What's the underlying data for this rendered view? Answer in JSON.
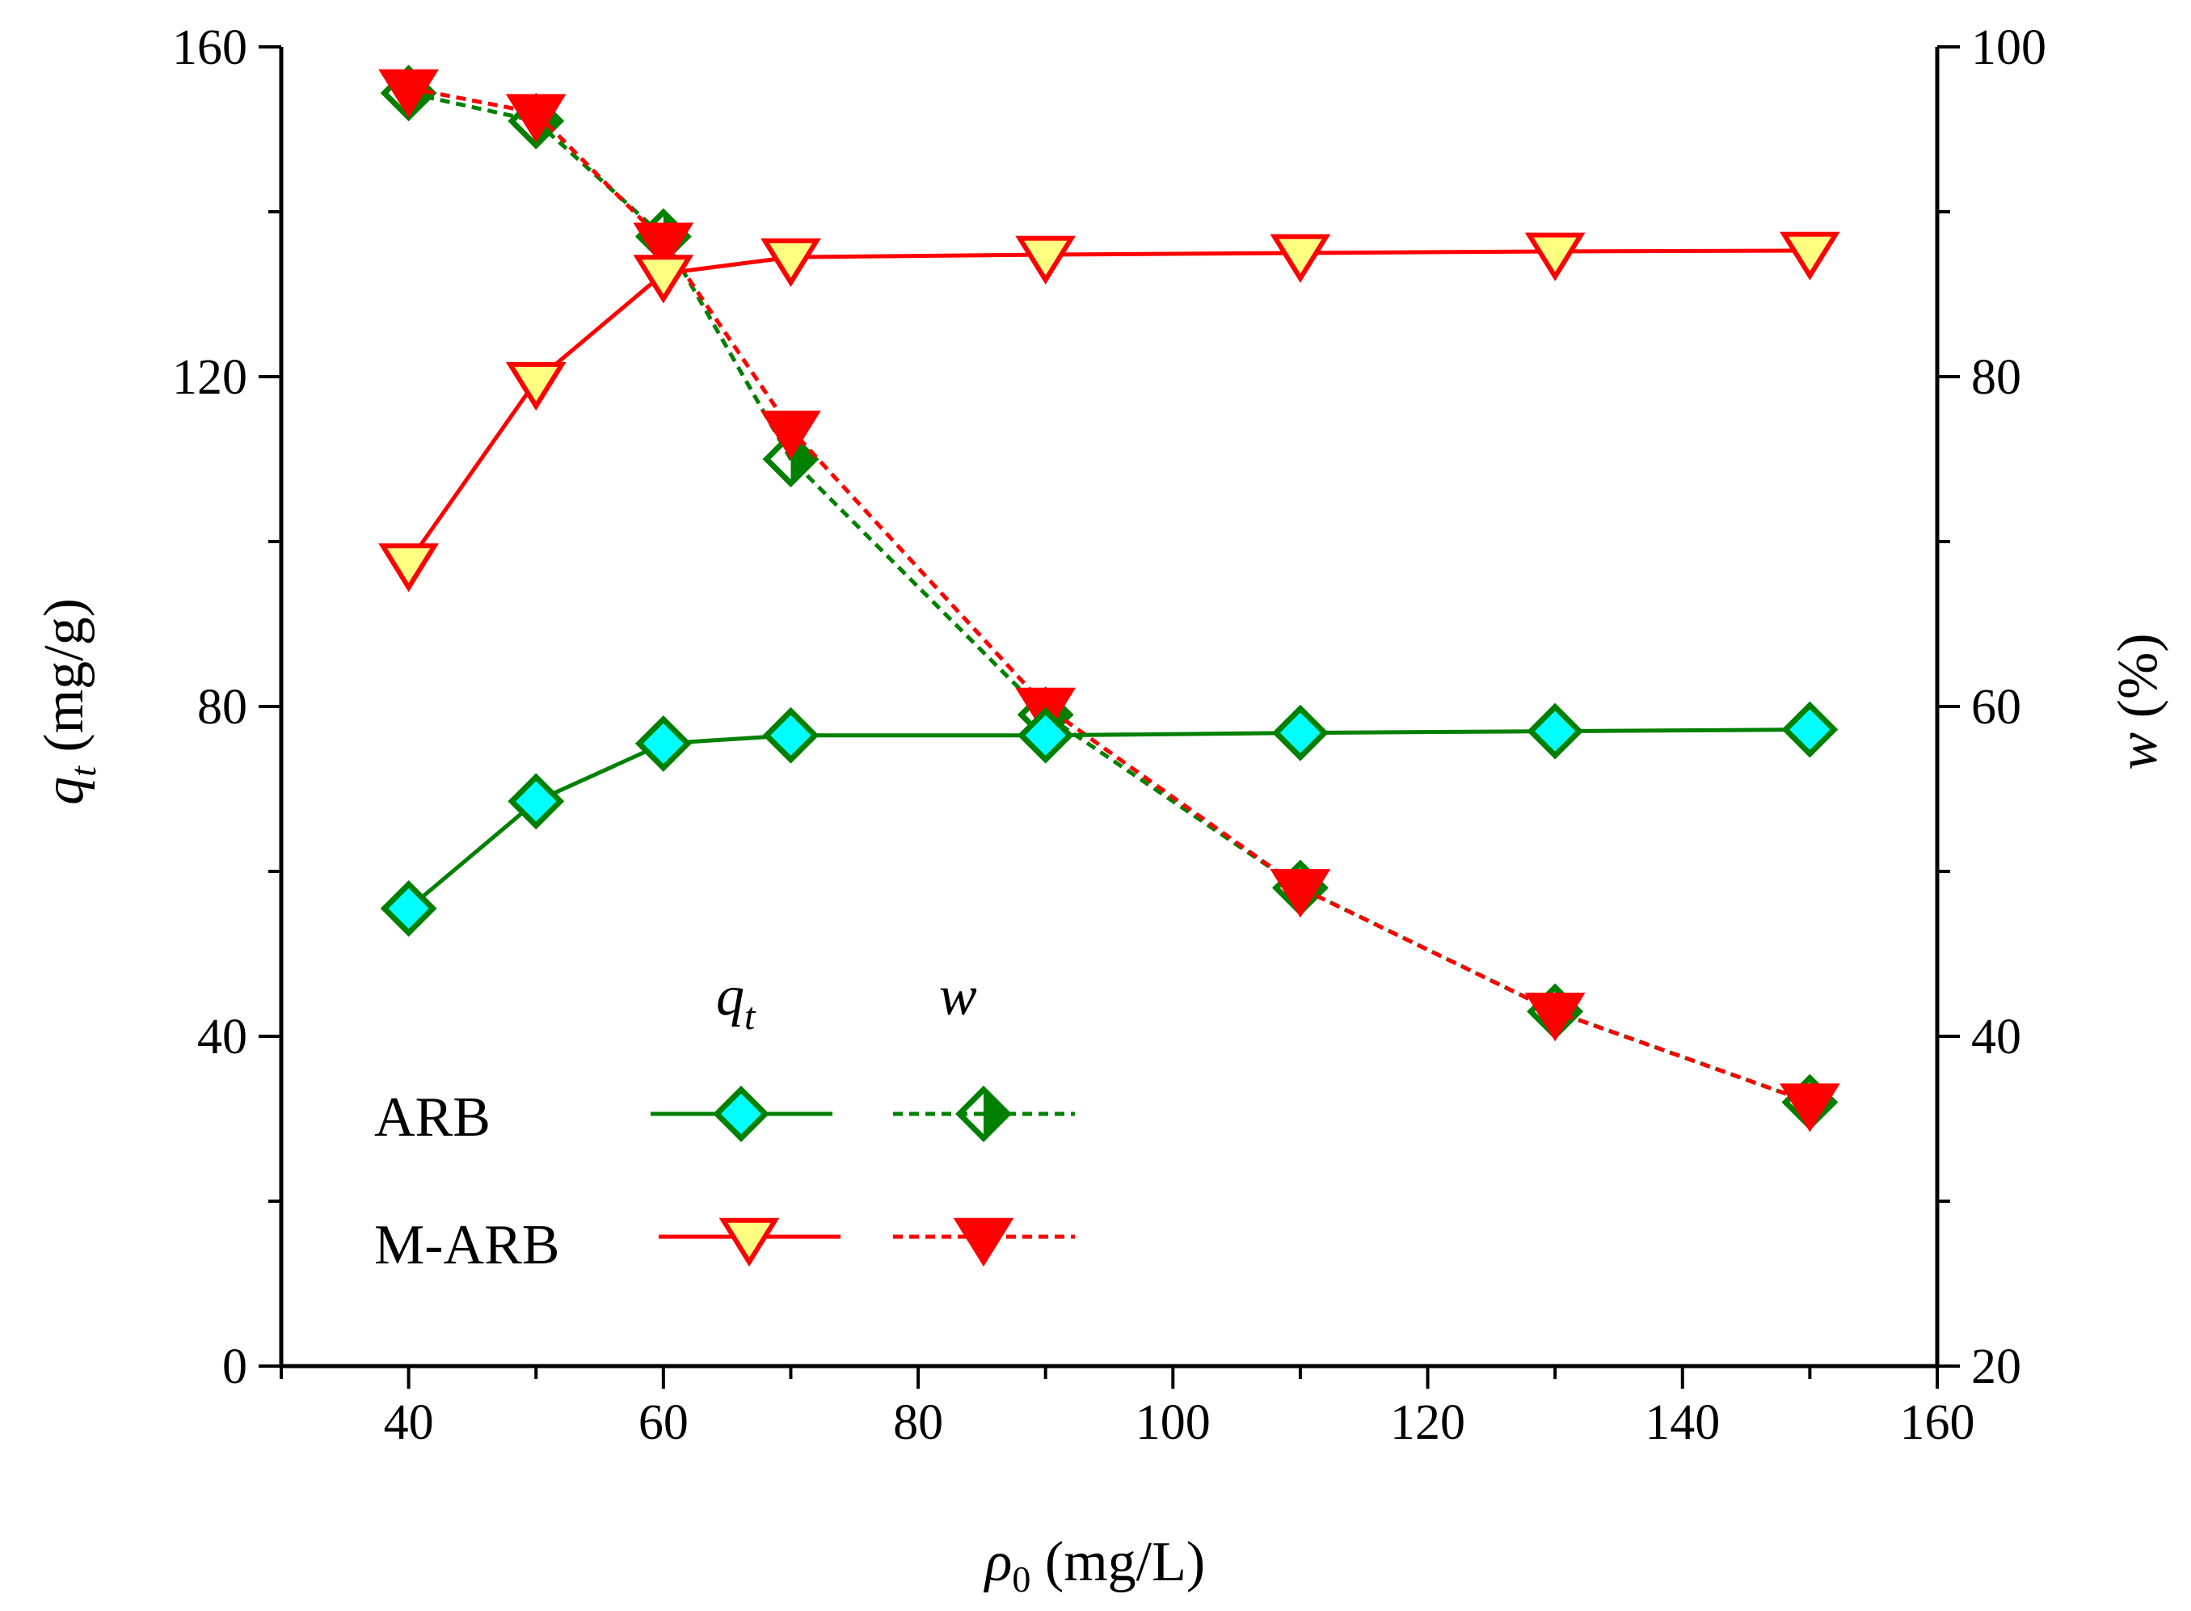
{
  "chart_data": {
    "type": "line",
    "x": [
      40,
      50,
      60,
      70,
      90,
      110,
      130,
      150
    ],
    "xlim": [
      30,
      160
    ],
    "xticks": [
      "40",
      "60",
      "80",
      "100",
      "120",
      "140",
      "160"
    ],
    "ylim_left": [
      0,
      160
    ],
    "yticks_left": [
      "0",
      "40",
      "80",
      "120",
      "160"
    ],
    "ylim_right": [
      20,
      100
    ],
    "yticks_right": [
      "20",
      "40",
      "60",
      "80",
      "100"
    ],
    "xlabel": {
      "symbol": "ρ",
      "sub": "0",
      "unit": " (mg/L)"
    },
    "ylabel_left": {
      "symbol": "q",
      "sub": "t",
      "unit": " (mg/g)"
    },
    "ylabel_right": {
      "symbol": "w",
      "unit": " (%)"
    },
    "legend": {
      "col_qt": {
        "symbol": "q",
        "sub": "t"
      },
      "col_w": "w",
      "rows": [
        "ARB",
        "M-ARB"
      ]
    },
    "series": [
      {
        "name": "ARB q_t",
        "axis": "left",
        "style": "solid",
        "marker": "diamond",
        "color": "#008000",
        "fill": "#00FFFF",
        "values": [
          55.5,
          68.5,
          75.5,
          76.5,
          76.5,
          76.8,
          77.0,
          77.2
        ]
      },
      {
        "name": "ARB w",
        "axis": "right",
        "style": "dashed",
        "marker": "diamond-half",
        "color": "#008000",
        "fill": "#008000",
        "values": [
          97.2,
          95.5,
          88.5,
          75.0,
          59.5,
          49.0,
          41.5,
          36.0
        ]
      },
      {
        "name": "M-ARB q_t",
        "axis": "left",
        "style": "solid",
        "marker": "triangle-down",
        "color": "#FF0000",
        "fill": "#FFFF80",
        "values": [
          97.5,
          119.5,
          132.5,
          134.5,
          134.8,
          135.0,
          135.2,
          135.3
        ]
      },
      {
        "name": "M-ARB w",
        "axis": "right",
        "style": "dashed",
        "marker": "triangle-down",
        "color": "#FF0000",
        "fill": "#FF0000",
        "values": [
          97.5,
          96.0,
          88.2,
          76.8,
          60.0,
          49.0,
          41.5,
          36.0
        ]
      }
    ]
  }
}
